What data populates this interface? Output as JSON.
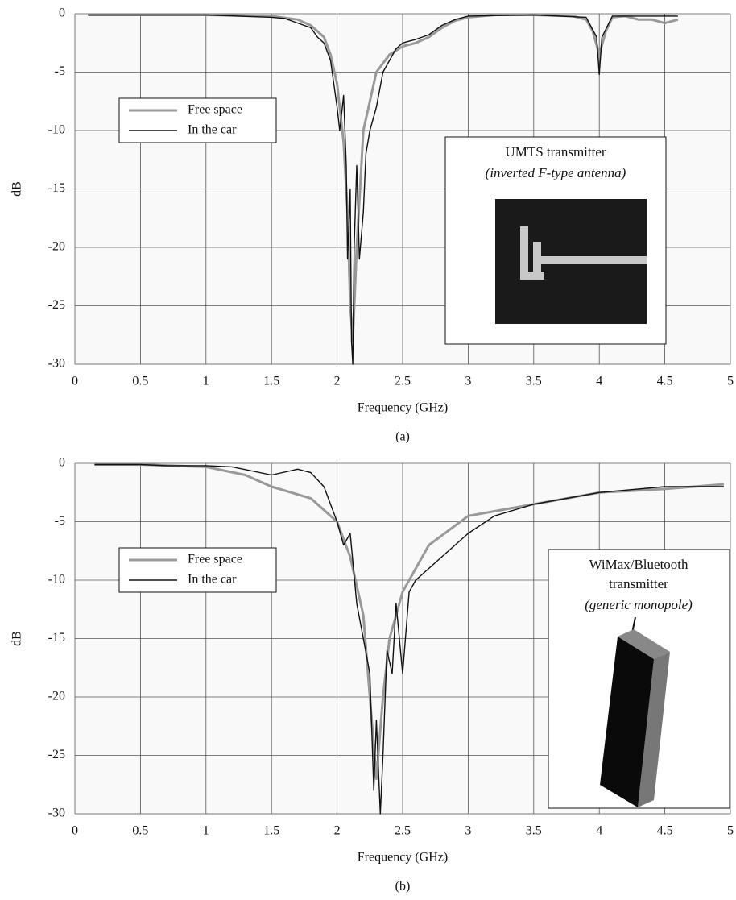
{
  "chart_data": [
    {
      "type": "line",
      "x_label": "Frequency (GHz)",
      "y_label": "dB",
      "caption": "(a)",
      "xlim": [
        0,
        5
      ],
      "ylim": [
        -30,
        0
      ],
      "xticks": [
        0,
        0.5,
        1,
        1.5,
        2,
        2.5,
        3,
        3.5,
        4,
        4.5,
        5
      ],
      "yticks": [
        0,
        -5,
        -10,
        -15,
        -20,
        -25,
        -30
      ],
      "grid": true,
      "legend": "upper left",
      "annotations": [
        "UMTS transmitter",
        "(inverted F-type antenna)"
      ],
      "series": [
        {
          "name": "Free space",
          "color": "#999999",
          "x": [
            0.1,
            0.5,
            1,
            1.5,
            1.7,
            1.8,
            1.9,
            1.95,
            2.0,
            2.05,
            2.08,
            2.1,
            2.12,
            2.15,
            2.2,
            2.3,
            2.4,
            2.5,
            2.6,
            2.7,
            2.8,
            2.9,
            3.0,
            3.2,
            3.5,
            3.8,
            3.9,
            3.95,
            4.0,
            4.05,
            4.1,
            4.2,
            4.3,
            4.4,
            4.5,
            4.6
          ],
          "values": [
            -0.1,
            -0.1,
            -0.1,
            -0.2,
            -0.5,
            -1,
            -2,
            -3.5,
            -6,
            -11,
            -17,
            -25,
            -28,
            -20,
            -10,
            -5,
            -3.5,
            -2.8,
            -2.5,
            -2,
            -1.2,
            -0.6,
            -0.3,
            -0.1,
            -0.1,
            -0.2,
            -0.5,
            -1.5,
            -3.5,
            -1.5,
            -0.3,
            -0.2,
            -0.5,
            -0.5,
            -0.8,
            -0.5
          ]
        },
        {
          "name": "In the car",
          "color": "#111111",
          "x": [
            0.1,
            1,
            1.5,
            1.6,
            1.7,
            1.8,
            1.85,
            1.9,
            1.95,
            2.0,
            2.02,
            2.05,
            2.07,
            2.08,
            2.1,
            2.11,
            2.12,
            2.13,
            2.15,
            2.17,
            2.2,
            2.22,
            2.25,
            2.3,
            2.35,
            2.4,
            2.45,
            2.5,
            2.6,
            2.7,
            2.8,
            2.9,
            3.0,
            3.5,
            3.9,
            3.98,
            4.0,
            4.02,
            4.1,
            4.5,
            4.6
          ],
          "values": [
            -0.1,
            -0.1,
            -0.3,
            -0.4,
            -0.8,
            -1.2,
            -2,
            -2.5,
            -4,
            -8,
            -10,
            -7,
            -13,
            -21,
            -15,
            -28,
            -30,
            -20,
            -13,
            -21,
            -17,
            -12,
            -10,
            -8,
            -5,
            -4,
            -3,
            -2.5,
            -2.2,
            -1.8,
            -1,
            -0.5,
            -0.2,
            -0.1,
            -0.3,
            -2,
            -5.2,
            -2,
            -0.2,
            -0.2,
            -0.2
          ]
        }
      ]
    },
    {
      "type": "line",
      "x_label": "Frequency (GHz)",
      "y_label": "dB",
      "caption": "(b)",
      "xlim": [
        0,
        5
      ],
      "ylim": [
        -30,
        0
      ],
      "xticks": [
        0,
        0.5,
        1,
        1.5,
        2,
        2.5,
        3,
        3.5,
        4,
        4.5,
        5
      ],
      "yticks": [
        0,
        -5,
        -10,
        -15,
        -20,
        -25,
        -30
      ],
      "grid": true,
      "legend": "upper left",
      "annotations": [
        "WiMax/Bluetooth",
        "transmitter",
        "(generic monopole)"
      ],
      "series": [
        {
          "name": "Free space",
          "color": "#999999",
          "x": [
            0.15,
            0.5,
            1,
            1.3,
            1.5,
            1.8,
            2.0,
            2.1,
            2.2,
            2.25,
            2.3,
            2.35,
            2.4,
            2.5,
            2.7,
            3.0,
            3.5,
            4,
            4.5,
            4.95
          ],
          "values": [
            -0.1,
            -0.1,
            -0.3,
            -1,
            -2,
            -3,
            -5,
            -8,
            -13,
            -20,
            -27,
            -20,
            -15,
            -11,
            -7,
            -4.5,
            -3.5,
            -2.5,
            -2.2,
            -1.8
          ]
        },
        {
          "name": "In the car",
          "color": "#111111",
          "x": [
            0.15,
            0.5,
            0.7,
            1,
            1.2,
            1.5,
            1.7,
            1.8,
            1.9,
            2.0,
            2.05,
            2.1,
            2.15,
            2.2,
            2.25,
            2.28,
            2.3,
            2.33,
            2.35,
            2.38,
            2.42,
            2.45,
            2.5,
            2.55,
            2.6,
            2.8,
            3.0,
            3.2,
            3.5,
            4.0,
            4.5,
            4.95
          ],
          "values": [
            -0.1,
            -0.1,
            -0.2,
            -0.2,
            -0.3,
            -1,
            -0.5,
            -0.8,
            -2,
            -5,
            -7,
            -6,
            -12,
            -15,
            -18,
            -28,
            -22,
            -30,
            -25,
            -16,
            -18,
            -12,
            -18,
            -11,
            -10,
            -8,
            -6,
            -4.5,
            -3.5,
            -2.5,
            -2,
            -2
          ]
        }
      ]
    }
  ]
}
